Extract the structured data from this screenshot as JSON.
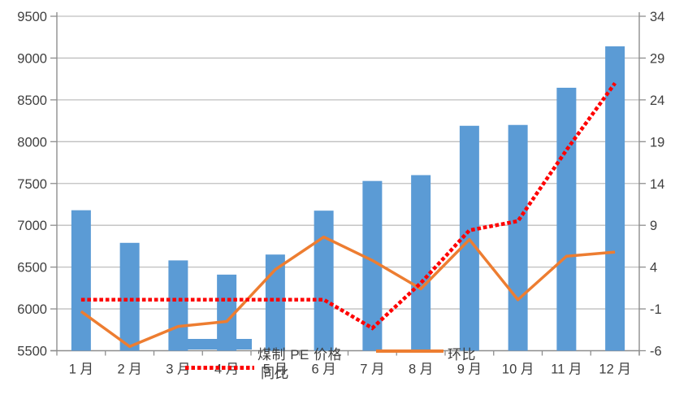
{
  "chart_data": {
    "type": "bar",
    "subtype": "combo-bar-line-dual-axis",
    "title": "",
    "categories": [
      "1 月",
      "2 月",
      "3 月",
      "4 月",
      "5 月",
      "6 月",
      "7 月",
      "8 月",
      "9 月",
      "10 月",
      "11 月",
      "12 月"
    ],
    "series": [
      {
        "name": "煤制 PE 价格",
        "type": "bar",
        "axis": "left",
        "color": "#5b9bd5",
        "values": [
          7180,
          6790,
          6580,
          6410,
          6650,
          7175,
          7530,
          7600,
          8190,
          8200,
          8645,
          9140
        ]
      },
      {
        "name": "环比",
        "type": "line",
        "axis": "right",
        "color": "#ed7d31",
        "values": [
          -1.3,
          -5.5,
          -3.1,
          -2.5,
          3.7,
          7.6,
          4.8,
          1.4,
          7.3,
          0.1,
          5.3,
          5.8
        ]
      },
      {
        "name": "同比",
        "type": "line-dotted",
        "axis": "right",
        "color": "#fe0000",
        "values": [
          0.1,
          0.1,
          0.1,
          0.1,
          0.1,
          0.1,
          -3.3,
          2.1,
          8.4,
          9.5,
          18,
          26
        ]
      }
    ],
    "left_axis": {
      "min": 5500,
      "max": 9500,
      "step": 500,
      "tick_labels": [
        "9500",
        "9000",
        "8500",
        "8000",
        "7500",
        "7000",
        "6500",
        "6000",
        "5500"
      ]
    },
    "right_axis": {
      "min": -6,
      "max": 34,
      "step": 5,
      "tick_labels": [
        "34",
        "29",
        "24",
        "19",
        "14",
        "9",
        "4",
        "-1",
        "-6"
      ]
    },
    "grid": true,
    "legend_position": "bottom-inside-overlapping"
  },
  "legend": {
    "bar_label": "煤制 PE 价格",
    "mom_label": "环比",
    "yoy_label": "同比"
  },
  "colors": {
    "bar": "#5b9bd5",
    "mom_line": "#ed7d31",
    "yoy_line": "#fe0000",
    "gridline": "#bfbfbf",
    "axis": "#8e8e8e",
    "text": "#3f3f3f"
  }
}
